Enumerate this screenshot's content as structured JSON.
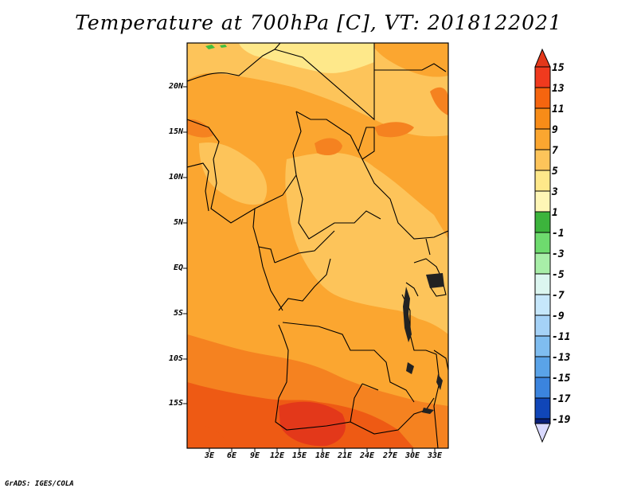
{
  "title": "Temperature at 700hPa [C], VT: 2018122021",
  "credit": "GrADS: IGES/COLA",
  "map": {
    "lat_ticks": [
      "20N",
      "15N",
      "10N",
      "5N",
      "EQ",
      "5S",
      "10S",
      "15S"
    ],
    "lon_ticks": [
      "3E",
      "6E",
      "9E",
      "12E",
      "15E",
      "18E",
      "21E",
      "24E",
      "27E",
      "30E",
      "33E"
    ],
    "fills": {
      "light_yellow": "#fee88a",
      "pale_orange": "#fdc45a",
      "orange": "#fba630",
      "dark_orange": "#f58220",
      "red_orange": "#ee5a14",
      "red": "#e3381a",
      "green": "#3fbf3f"
    }
  },
  "colorbar": {
    "labels": [
      "15",
      "13",
      "11",
      "9",
      "7",
      "5",
      "3",
      "1",
      "-1",
      "-3",
      "-5",
      "-7",
      "-9",
      "-11",
      "-13",
      "-15",
      "-17",
      "-19"
    ],
    "colors": [
      "#f03a1e",
      "#f5650f",
      "#f88c18",
      "#fba630",
      "#fdc45a",
      "#fee88a",
      "#fef6b6",
      "#3cb43c",
      "#6edb6e",
      "#a8eea8",
      "#dcf6f0",
      "#c6e7fb",
      "#a5d2f7",
      "#7fbdf0",
      "#5aa3e8",
      "#3b84de",
      "#1e63cf",
      "#1046b8",
      "#0a1f7a",
      "#d9d9ff"
    ]
  }
}
